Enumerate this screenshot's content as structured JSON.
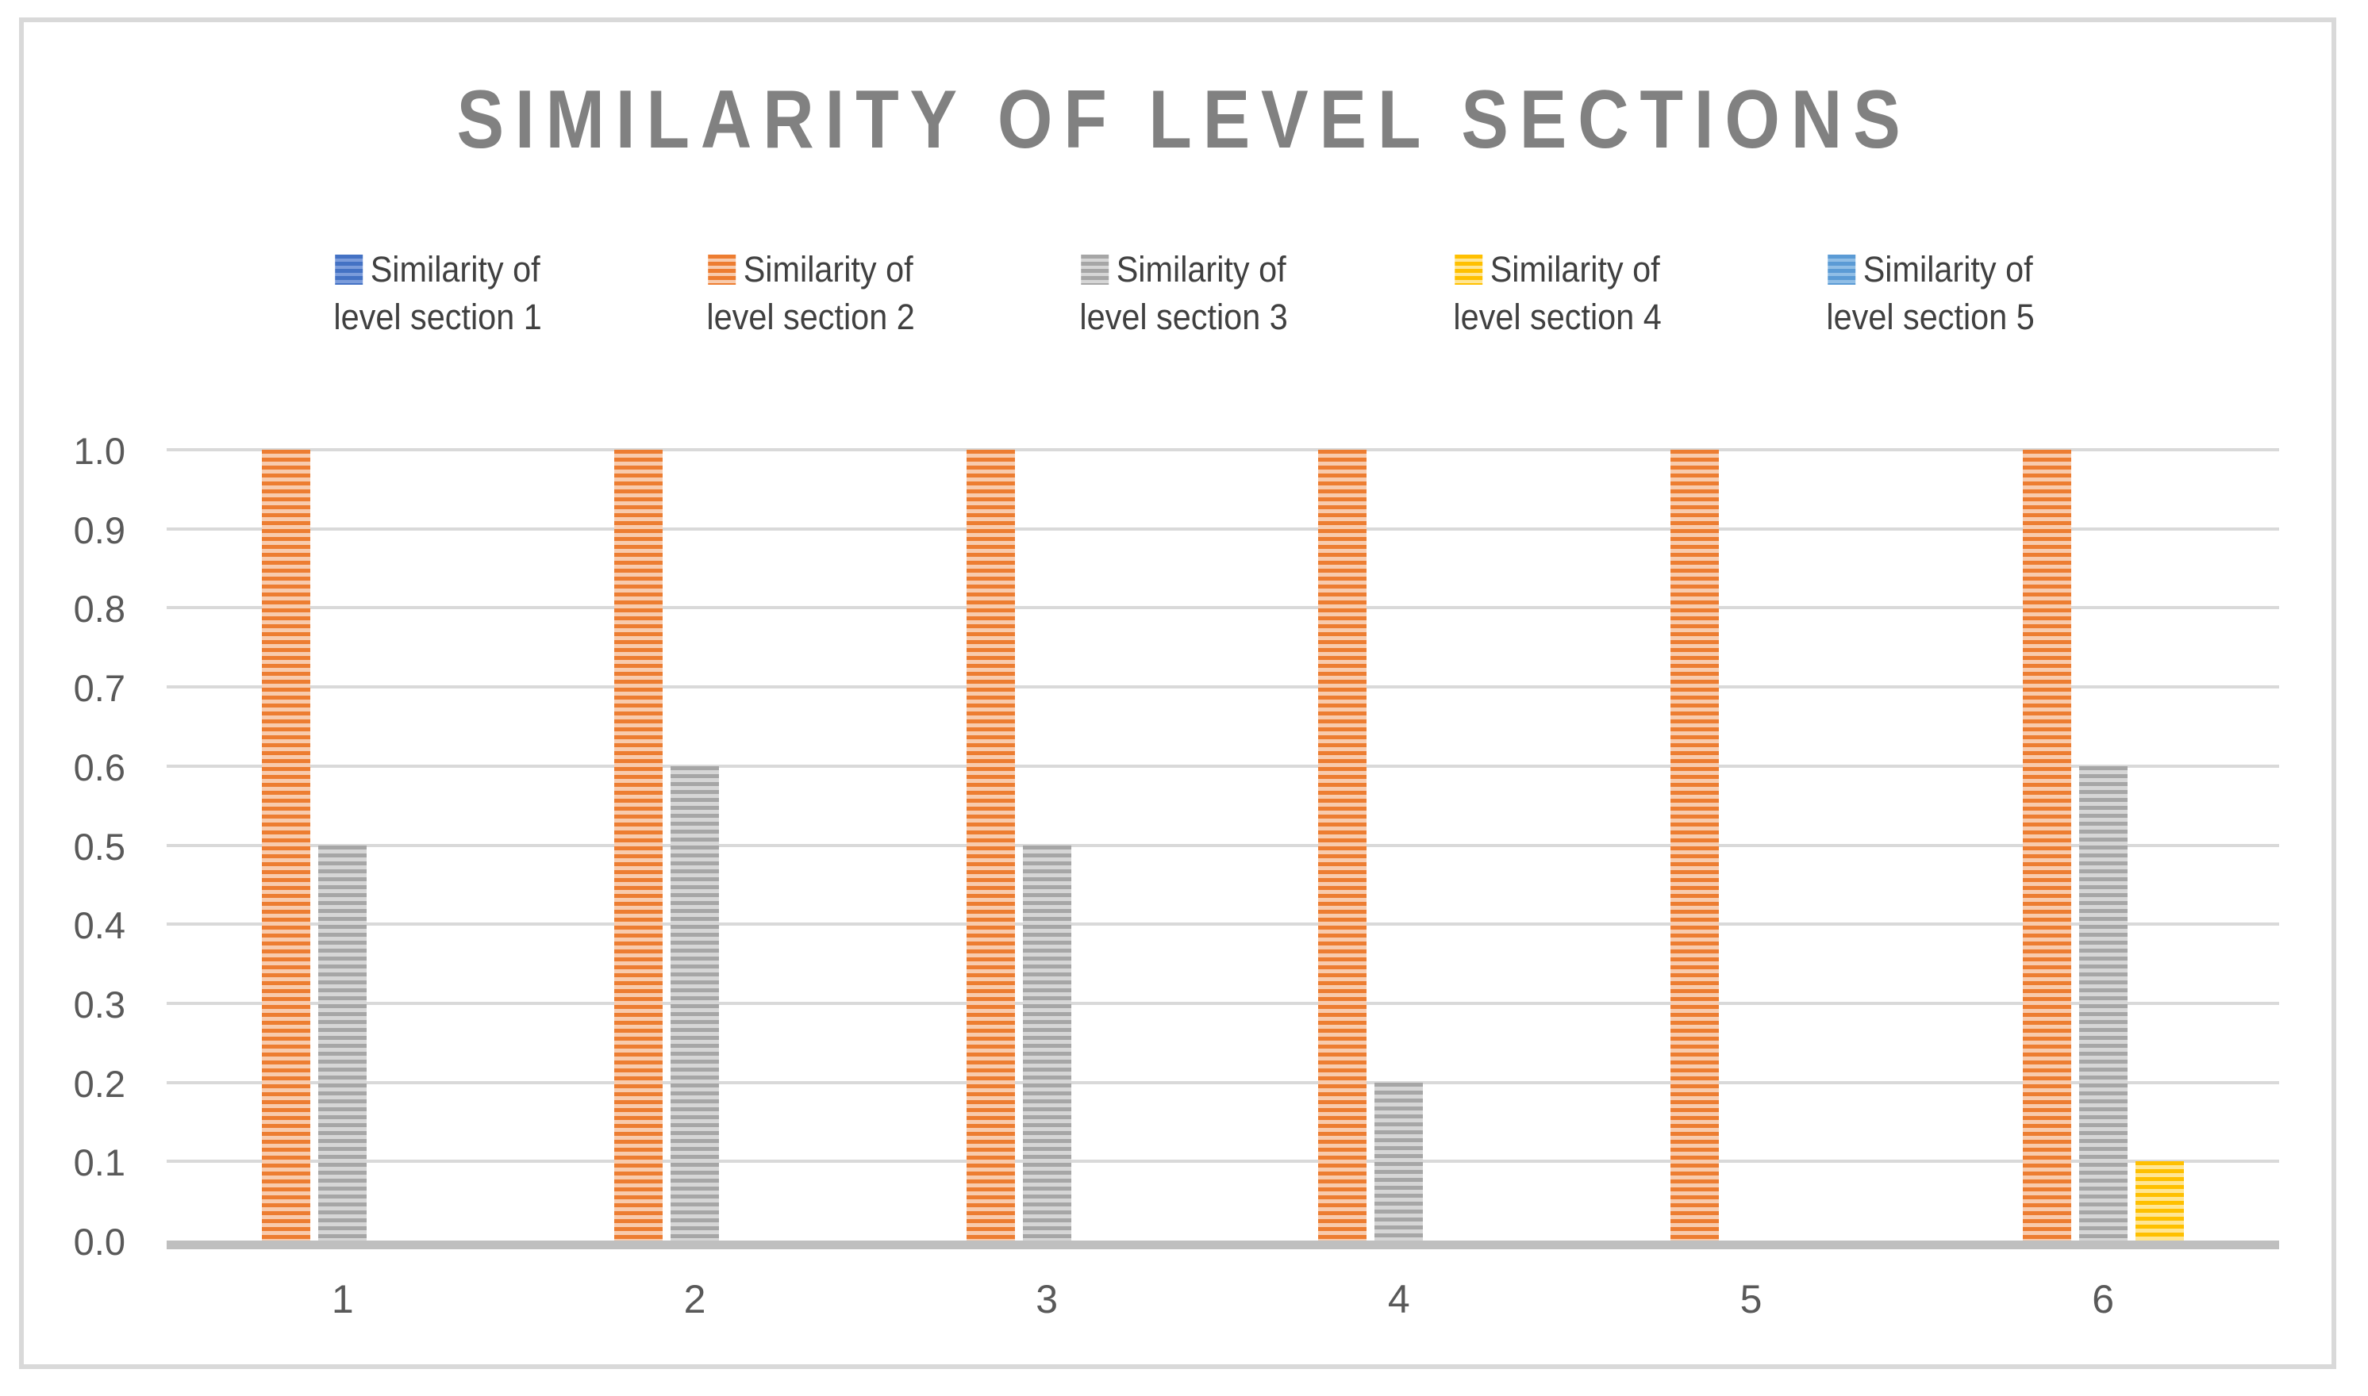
{
  "chart_data": {
    "type": "bar",
    "title": "SIMILARITY OF LEVEL SECTIONS",
    "categories": [
      "1",
      "2",
      "3",
      "4",
      "5",
      "6"
    ],
    "series": [
      {
        "name": "Similarity of level section 1",
        "legend_line1": "Similarity of",
        "legend_line2": "level section 1",
        "color": "#4472C4",
        "stripe_light": "#7B9CDB",
        "values": [
          0,
          0,
          0,
          0,
          0,
          0
        ]
      },
      {
        "name": "Similarity of level section 2",
        "legend_line1": "Similarity of",
        "legend_line2": "level section 2",
        "color": "#ED7D31",
        "stripe_light": "#F8CBAD",
        "values": [
          1.0,
          1.0,
          1.0,
          1.0,
          1.0,
          1.0
        ]
      },
      {
        "name": "Similarity of level section 3",
        "legend_line1": "Similarity of",
        "legend_line2": "level section 3",
        "color": "#A6A6A6",
        "stripe_light": "#D6D6D6",
        "values": [
          0.5,
          0.6,
          0.5,
          0.2,
          0,
          0.6
        ]
      },
      {
        "name": "Similarity of level section 4",
        "legend_line1": "Similarity of",
        "legend_line2": "level section 4",
        "color": "#FFC000",
        "stripe_light": "#FFE694",
        "values": [
          0,
          0,
          0,
          0,
          0,
          0.1
        ]
      },
      {
        "name": "Similarity of level section 5",
        "legend_line1": "Similarity of",
        "legend_line2": "level section 5",
        "color": "#5B9BD5",
        "stripe_light": "#90BEE6",
        "values": [
          0,
          0,
          0,
          0,
          0,
          0
        ]
      }
    ],
    "ylim": [
      0.0,
      1.0
    ],
    "ytick_labels": [
      "0.0",
      "0.1",
      "0.2",
      "0.3",
      "0.4",
      "0.5",
      "0.6",
      "0.7",
      "0.8",
      "0.9",
      "1.0"
    ],
    "legend_position": "top",
    "grid": true,
    "style": {
      "title_color": "#818181",
      "legend_text_color": "#404040",
      "axis_text_color": "#595959",
      "gridline_color": "#D9D9D9",
      "axis_line_color": "#BFBFBF",
      "frame_border_color": "#D9D9D9",
      "background": "#FFFFFF"
    }
  }
}
